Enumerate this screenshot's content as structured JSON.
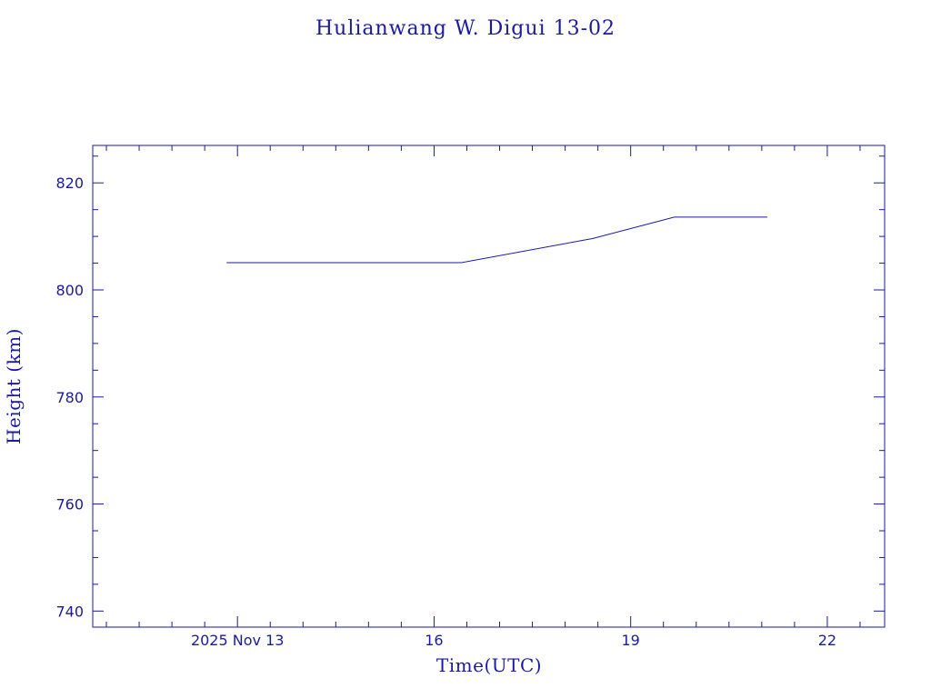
{
  "colors": {
    "ink": "#1a1aa0",
    "background": "#ffffff"
  },
  "chart_data": {
    "type": "line",
    "title": "Hulianwang W. Digui 13-02",
    "xlabel": "Time(UTC)",
    "ylabel": "Height (km)",
    "xlim": [
      "2025-11-10T19:00",
      "2025-11-22T21:00"
    ],
    "ylim": [
      737,
      827
    ],
    "x_ticks": [
      {
        "label": "2025 Nov 13",
        "value": "2025-11-13"
      },
      {
        "label": "16",
        "value": "2025-11-16"
      },
      {
        "label": "19",
        "value": "2025-11-19"
      },
      {
        "label": "22",
        "value": "2025-11-22"
      }
    ],
    "y_ticks": [
      740,
      760,
      780,
      800,
      820
    ],
    "grid": false,
    "series": [
      {
        "points": [
          {
            "x": "2025-11-12T20:00",
            "y": 805.1
          },
          {
            "x": "2025-11-16T10:00",
            "y": 805.1
          },
          {
            "x": "2025-11-18T10:00",
            "y": 809.6
          },
          {
            "x": "2025-11-19T16:00",
            "y": 813.6
          },
          {
            "x": "2025-11-21T02:00",
            "y": 813.6
          }
        ]
      }
    ]
  }
}
